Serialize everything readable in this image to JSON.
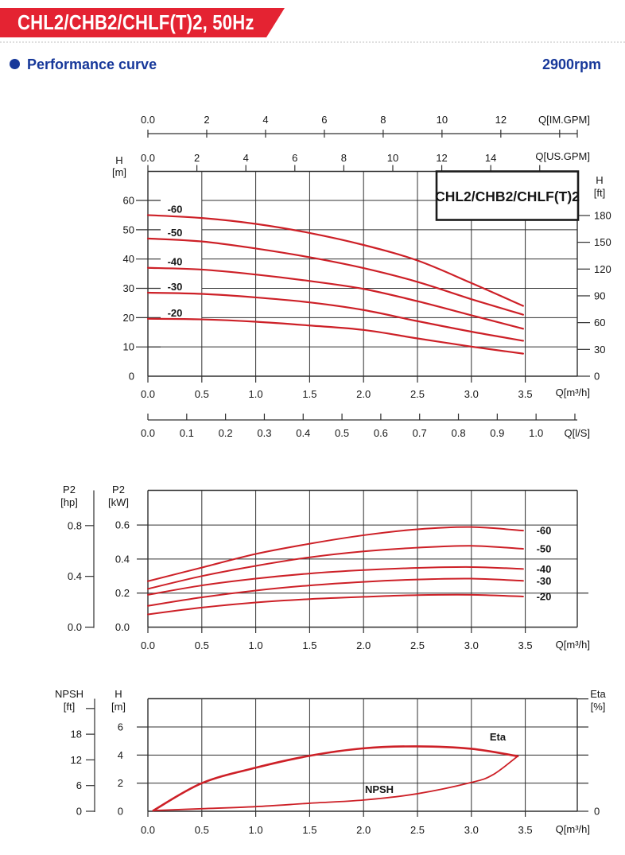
{
  "header": {
    "model_banner": "CHL2/CHB2/CHLF(T)2, 50Hz",
    "section_title": "Performance curve",
    "speed": "2900rpm",
    "banner_color": "#e42332",
    "accent_blue": "#17389a"
  },
  "chart_data": [
    {
      "type": "line",
      "id": "head-capacity-chart",
      "title": "CHL2/CHB2/CHLF(T)2",
      "curve_color": "#cd2027",
      "grid": true,
      "xlabel": "Q[m³/h]",
      "xlim": [
        0,
        3.98
      ],
      "ylim_m": [
        0,
        69.9
      ],
      "x_axes": [
        {
          "name": "im-gpm",
          "label": "Q[IM.GPM]",
          "m3h_per_unit": 0.27276,
          "ticks": [
            [
              0,
              "0.0"
            ],
            [
              2,
              "2"
            ],
            [
              4,
              "4"
            ],
            [
              6,
              "6"
            ],
            [
              8,
              "8"
            ],
            [
              10,
              "10"
            ],
            [
              12,
              "12"
            ],
            [
              14,
              ""
            ]
          ]
        },
        {
          "name": "us-gpm",
          "label": "Q[US.GPM]",
          "m3h_per_unit": 0.22712,
          "ticks": [
            [
              0,
              "0.0"
            ],
            [
              2,
              "2"
            ],
            [
              4,
              "4"
            ],
            [
              6,
              "6"
            ],
            [
              8,
              "8"
            ],
            [
              10,
              "10"
            ],
            [
              12,
              "12"
            ],
            [
              14,
              "14"
            ],
            [
              16,
              ""
            ]
          ]
        },
        {
          "name": "m3h",
          "label": "Q[m³/h]",
          "m3h_per_unit": 1,
          "ticks": [
            [
              0,
              "0.0"
            ],
            [
              0.5,
              "0.5"
            ],
            [
              1,
              "1.0"
            ],
            [
              1.5,
              "1.5"
            ],
            [
              2,
              "2.0"
            ],
            [
              2.5,
              "2.5"
            ],
            [
              3,
              "3.0"
            ],
            [
              3.5,
              "3.5"
            ]
          ]
        },
        {
          "name": "l-s",
          "label": "Q[l/S]",
          "m3h_per_unit": 3.6,
          "ticks": [
            [
              0,
              "0.0"
            ],
            [
              0.1,
              "0.1"
            ],
            [
              0.2,
              "0.2"
            ],
            [
              0.3,
              "0.3"
            ],
            [
              0.4,
              "0.4"
            ],
            [
              0.5,
              "0.5"
            ],
            [
              0.6,
              "0.6"
            ],
            [
              0.7,
              "0.7"
            ],
            [
              0.8,
              "0.8"
            ],
            [
              0.9,
              "0.9"
            ],
            [
              1.0,
              "1.0"
            ],
            [
              1.1,
              ""
            ]
          ]
        }
      ],
      "y_left": {
        "label_1": "H",
        "label_2": "[m]",
        "unit": "m",
        "ticks": [
          [
            0,
            "0"
          ],
          [
            10,
            "10"
          ],
          [
            20,
            "20"
          ],
          [
            30,
            "30"
          ],
          [
            40,
            "40"
          ],
          [
            50,
            "50"
          ],
          [
            60,
            "60"
          ]
        ]
      },
      "y_right": {
        "label_1": "H",
        "label_2": "[ft]",
        "unit": "ft",
        "m_per_unit": 0.3048,
        "ticks": [
          [
            0,
            "0"
          ],
          [
            30,
            "30"
          ],
          [
            60,
            "60"
          ],
          [
            90,
            "90"
          ],
          [
            120,
            "120"
          ],
          [
            150,
            "150"
          ],
          [
            180,
            "180"
          ]
        ]
      },
      "series": [
        {
          "name": "-60",
          "points": [
            [
              0,
              55
            ],
            [
              0.5,
              54
            ],
            [
              1,
              52
            ],
            [
              1.5,
              48.9
            ],
            [
              2,
              44.8
            ],
            [
              2.5,
              39.5
            ],
            [
              3,
              31.8
            ],
            [
              3.48,
              24
            ]
          ]
        },
        {
          "name": "-50",
          "points": [
            [
              0,
              47
            ],
            [
              0.5,
              46
            ],
            [
              1,
              43.6
            ],
            [
              1.5,
              40.6
            ],
            [
              2,
              36.9
            ],
            [
              2.5,
              32.2
            ],
            [
              3,
              26.3
            ],
            [
              3.48,
              21
            ]
          ]
        },
        {
          "name": "-40",
          "points": [
            [
              0,
              37
            ],
            [
              0.5,
              36.4
            ],
            [
              1,
              34.7
            ],
            [
              1.5,
              32.5
            ],
            [
              2,
              29.8
            ],
            [
              2.5,
              25.6
            ],
            [
              3,
              20.8
            ],
            [
              3.48,
              16.2
            ]
          ]
        },
        {
          "name": "-30",
          "points": [
            [
              0,
              28.5
            ],
            [
              0.5,
              28.1
            ],
            [
              1,
              26.9
            ],
            [
              1.5,
              25.2
            ],
            [
              2,
              22.6
            ],
            [
              2.5,
              18.8
            ],
            [
              3,
              15.2
            ],
            [
              3.48,
              12.1
            ]
          ]
        },
        {
          "name": "-20",
          "points": [
            [
              0,
              19.6
            ],
            [
              0.5,
              19.4
            ],
            [
              1,
              18.6
            ],
            [
              1.5,
              17.3
            ],
            [
              2,
              15.8
            ],
            [
              2.5,
              12.9
            ],
            [
              3,
              10.1
            ],
            [
              3.48,
              7.7
            ]
          ]
        }
      ]
    },
    {
      "type": "line",
      "id": "power-chart",
      "curve_color": "#cd2027",
      "grid": true,
      "xlabel": "Q[m³/h]",
      "xlim": [
        0,
        3.98
      ],
      "ylim_kw": [
        0,
        0.8
      ],
      "x_ticks": [
        [
          0,
          "0.0"
        ],
        [
          0.5,
          "0.5"
        ],
        [
          1,
          "1.0"
        ],
        [
          1.5,
          "1.5"
        ],
        [
          2,
          "2.0"
        ],
        [
          2.5,
          "2.5"
        ],
        [
          3,
          "3.0"
        ],
        [
          3.5,
          "3.5"
        ]
      ],
      "y_left": {
        "label_1": "P2",
        "label_2": "[kW]",
        "unit": "kW",
        "ticks": [
          [
            0,
            "0.0"
          ],
          [
            0.2,
            "0.2"
          ],
          [
            0.4,
            "0.4"
          ],
          [
            0.6,
            "0.6"
          ]
        ]
      },
      "y_hp": {
        "label_1": "P2",
        "label_2": "[hp]",
        "unit": "hp",
        "kw_per_unit": 0.7457,
        "ticks": [
          [
            0,
            "0.0"
          ],
          [
            0.4,
            "0.4"
          ],
          [
            0.8,
            "0.8"
          ]
        ]
      },
      "series": [
        {
          "name": "-60",
          "points": [
            [
              0,
              0.27
            ],
            [
              0.5,
              0.35
            ],
            [
              1,
              0.43
            ],
            [
              1.5,
              0.49
            ],
            [
              2,
              0.54
            ],
            [
              2.5,
              0.575
            ],
            [
              3,
              0.588
            ],
            [
              3.48,
              0.567
            ]
          ]
        },
        {
          "name": "-50",
          "points": [
            [
              0,
              0.225
            ],
            [
              0.5,
              0.3
            ],
            [
              1,
              0.36
            ],
            [
              1.5,
              0.41
            ],
            [
              2,
              0.445
            ],
            [
              2.5,
              0.467
            ],
            [
              3,
              0.478
            ],
            [
              3.48,
              0.46
            ]
          ]
        },
        {
          "name": "-40",
          "points": [
            [
              0,
              0.19
            ],
            [
              0.5,
              0.245
            ],
            [
              1,
              0.285
            ],
            [
              1.5,
              0.315
            ],
            [
              2,
              0.335
            ],
            [
              2.5,
              0.348
            ],
            [
              3,
              0.353
            ],
            [
              3.48,
              0.342
            ]
          ]
        },
        {
          "name": "-30",
          "points": [
            [
              0,
              0.125
            ],
            [
              0.5,
              0.175
            ],
            [
              1,
              0.215
            ],
            [
              1.5,
              0.245
            ],
            [
              2,
              0.266
            ],
            [
              2.5,
              0.28
            ],
            [
              3,
              0.285
            ],
            [
              3.48,
              0.272
            ]
          ]
        },
        {
          "name": "-20",
          "points": [
            [
              0,
              0.075
            ],
            [
              0.5,
              0.115
            ],
            [
              1,
              0.145
            ],
            [
              1.5,
              0.165
            ],
            [
              2,
              0.178
            ],
            [
              2.5,
              0.188
            ],
            [
              3,
              0.19
            ],
            [
              3.48,
              0.18
            ]
          ]
        }
      ]
    },
    {
      "type": "line",
      "id": "npsh-eta-chart",
      "curve_color": "#cd2027",
      "grid": true,
      "xlabel": "Q[m³/h]",
      "xlim": [
        0,
        3.98
      ],
      "ylim_m": [
        0,
        8
      ],
      "x_ticks": [
        [
          0,
          "0.0"
        ],
        [
          0.5,
          "0.5"
        ],
        [
          1,
          "1.0"
        ],
        [
          1.5,
          "1.5"
        ],
        [
          2,
          "2.0"
        ],
        [
          2.5,
          "2.5"
        ],
        [
          3,
          "3.0"
        ],
        [
          3.5,
          "3.5"
        ]
      ],
      "y_left": {
        "label_1": "H",
        "label_2": "[m]",
        "unit": "m",
        "ticks": [
          [
            0,
            "0"
          ],
          [
            2,
            "2"
          ],
          [
            4,
            "4"
          ],
          [
            6,
            "6"
          ]
        ]
      },
      "y_npsh": {
        "label_1": "NPSH",
        "label_2": "[ft]",
        "unit": "ft",
        "m_per_unit": 0.3048,
        "ticks": [
          [
            0,
            "0"
          ],
          [
            6,
            "6"
          ],
          [
            12,
            "12"
          ],
          [
            18,
            "18"
          ],
          [
            24,
            ""
          ]
        ]
      },
      "y_right": {
        "label_1": "Eta",
        "label_2": "[%]",
        "unit": "%",
        "ticks": [
          [
            0,
            "0"
          ],
          [
            2,
            ""
          ],
          [
            4,
            ""
          ],
          [
            6,
            ""
          ],
          [
            8,
            ""
          ]
        ]
      },
      "series": [
        {
          "name": "Eta",
          "points": [
            [
              0.05,
              0.05
            ],
            [
              0.5,
              2.0
            ],
            [
              1,
              3.1
            ],
            [
              1.5,
              3.95
            ],
            [
              2,
              4.48
            ],
            [
              2.5,
              4.62
            ],
            [
              3,
              4.45
            ],
            [
              3.43,
              3.92
            ]
          ]
        },
        {
          "name": "NPSH",
          "points": [
            [
              0.05,
              0.05
            ],
            [
              0.5,
              0.18
            ],
            [
              1,
              0.33
            ],
            [
              1.5,
              0.57
            ],
            [
              2,
              0.8
            ],
            [
              2.5,
              1.25
            ],
            [
              3,
              2.05
            ],
            [
              3.2,
              2.6
            ],
            [
              3.43,
              3.92
            ]
          ]
        }
      ]
    }
  ]
}
